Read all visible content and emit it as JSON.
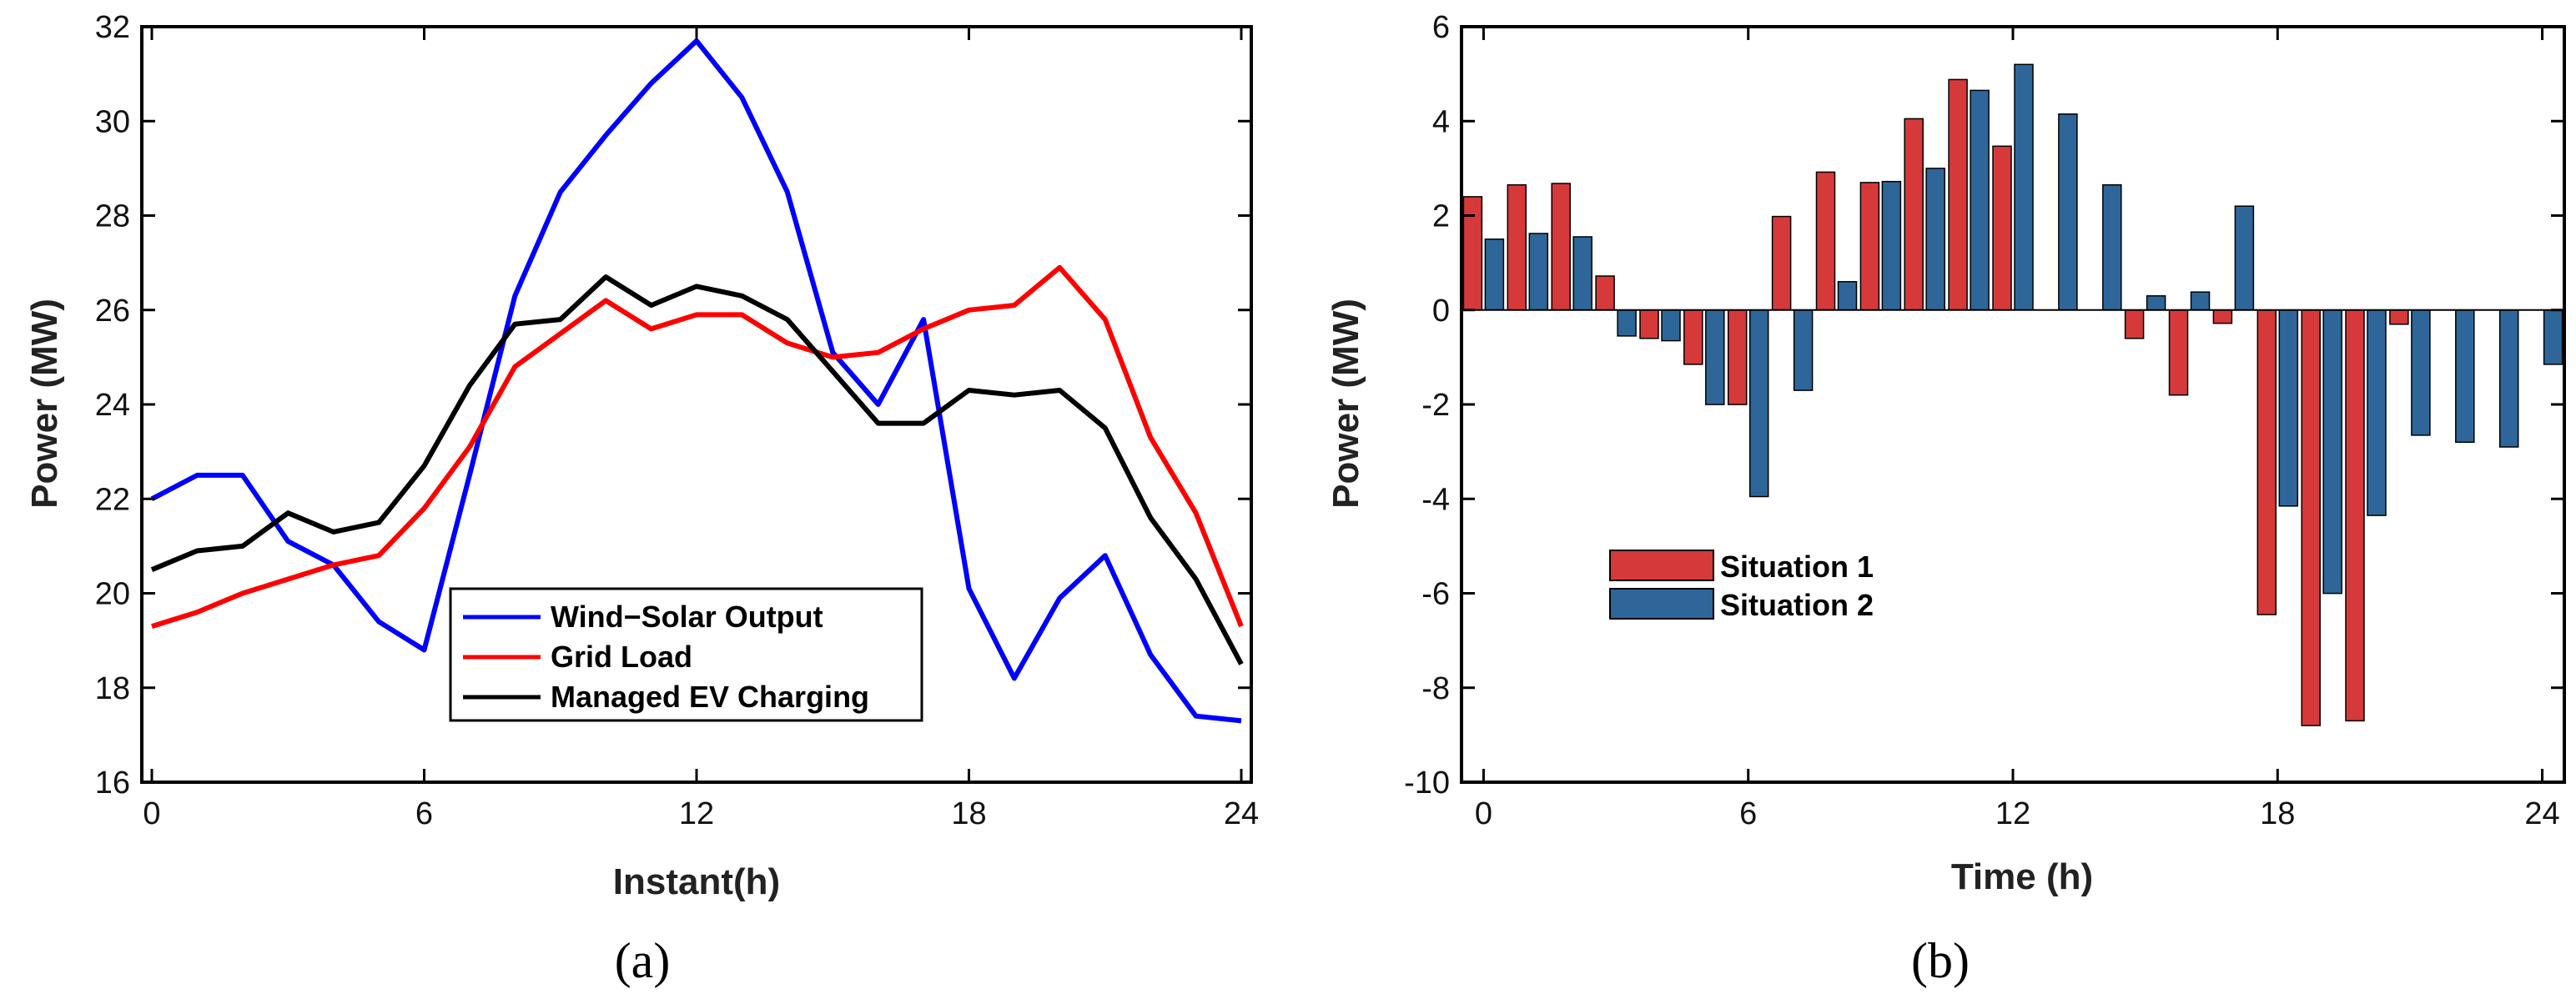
{
  "chart_data": [
    {
      "type": "line",
      "caption": "(a)",
      "xlabel": "Instant(h)",
      "ylabel": "Power (MW)",
      "xlim": [
        0,
        24
      ],
      "ylim": [
        16,
        32
      ],
      "xticks": [
        0,
        6,
        12,
        18,
        24
      ],
      "yticks": [
        16,
        18,
        20,
        22,
        24,
        26,
        28,
        30,
        32
      ],
      "grid": false,
      "legend_position": "bottom-center",
      "x": [
        0,
        1,
        2,
        3,
        4,
        5,
        6,
        7,
        8,
        9,
        10,
        11,
        12,
        13,
        14,
        15,
        16,
        17,
        18,
        19,
        20,
        21,
        22,
        23,
        24
      ],
      "series": [
        {
          "name": "Wind−Solar Output",
          "color": "#0000ff",
          "values": [
            22.0,
            22.5,
            22.5,
            21.1,
            20.6,
            19.4,
            18.8,
            22.5,
            26.3,
            28.5,
            29.7,
            30.8,
            31.7,
            30.5,
            28.5,
            25.1,
            24.0,
            25.8,
            20.1,
            18.2,
            19.9,
            20.8,
            18.7,
            17.4,
            17.3
          ]
        },
        {
          "name": "Grid Load",
          "color": "#ff0000",
          "values": [
            19.3,
            19.6,
            20.0,
            20.3,
            20.6,
            20.8,
            21.8,
            23.1,
            24.8,
            25.5,
            26.2,
            25.6,
            25.9,
            25.9,
            25.3,
            25.0,
            25.1,
            25.6,
            26.0,
            26.1,
            26.9,
            25.8,
            23.3,
            21.7,
            19.3
          ]
        },
        {
          "name": "Managed EV Charging",
          "color": "#000000",
          "values": [
            20.5,
            20.9,
            21.0,
            21.7,
            21.3,
            21.5,
            22.7,
            24.4,
            25.7,
            25.8,
            26.7,
            26.1,
            26.5,
            26.3,
            25.8,
            24.7,
            23.6,
            23.6,
            24.3,
            24.2,
            24.3,
            23.5,
            21.6,
            20.3,
            18.5
          ]
        }
      ]
    },
    {
      "type": "bar",
      "caption": "(b)",
      "xlabel": "Time (h)",
      "ylabel": "Power (MW)",
      "xlim": [
        -0.5,
        24.5
      ],
      "ylim": [
        -10,
        6
      ],
      "xticks": [
        0,
        6,
        12,
        18,
        24
      ],
      "yticks": [
        -10,
        -8,
        -6,
        -4,
        -2,
        0,
        2,
        4,
        6
      ],
      "grid": false,
      "legend_position": "left-middle",
      "x": [
        0,
        1,
        2,
        3,
        4,
        5,
        6,
        7,
        8,
        9,
        10,
        11,
        12,
        13,
        14,
        15,
        16,
        17,
        18,
        19,
        20,
        21,
        22,
        23,
        24
      ],
      "series": [
        {
          "name": "Situation 1",
          "color": "#d6393a",
          "values": [
            2.4,
            2.65,
            2.68,
            0.72,
            -0.6,
            -1.15,
            -2.0,
            1.98,
            2.92,
            2.7,
            4.05,
            4.88,
            3.47,
            0,
            0,
            -0.6,
            -1.8,
            -0.28,
            -6.45,
            -8.8,
            -8.7,
            -0.3,
            0,
            0,
            0
          ]
        },
        {
          "name": "Situation 2",
          "color": "#2e6699",
          "values": [
            1.5,
            1.62,
            1.55,
            -0.55,
            -0.65,
            -2.0,
            -3.95,
            -1.7,
            0.6,
            2.72,
            3.0,
            4.65,
            5.2,
            4.15,
            2.65,
            0.3,
            0.38,
            2.2,
            -4.15,
            -6.0,
            -4.35,
            -2.65,
            -2.8,
            -2.9,
            -1.15
          ]
        }
      ]
    }
  ]
}
